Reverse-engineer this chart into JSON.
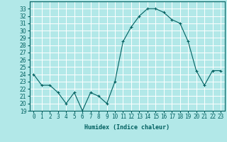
{
  "x": [
    0,
    1,
    2,
    3,
    4,
    5,
    6,
    7,
    8,
    9,
    10,
    11,
    12,
    13,
    14,
    15,
    16,
    17,
    18,
    19,
    20,
    21,
    22,
    23
  ],
  "y": [
    24.0,
    22.5,
    22.5,
    21.5,
    20.0,
    21.5,
    19.0,
    21.5,
    21.0,
    20.0,
    23.0,
    28.5,
    30.5,
    32.0,
    33.0,
    33.0,
    32.5,
    31.5,
    31.0,
    28.5,
    24.5,
    22.5,
    24.5,
    24.5
  ],
  "line_color": "#006060",
  "marker": "+",
  "marker_size": 3,
  "xlabel": "Humidex (Indice chaleur)",
  "bg_color": "#b2e8e8",
  "grid_color": "#ffffff",
  "ylim": [
    19,
    34
  ],
  "xlim": [
    -0.5,
    23.5
  ],
  "yticks": [
    19,
    20,
    21,
    22,
    23,
    24,
    25,
    26,
    27,
    28,
    29,
    30,
    31,
    32,
    33
  ],
  "xtick_labels": [
    "0",
    "1",
    "2",
    "3",
    "4",
    "5",
    "6",
    "7",
    "8",
    "9",
    "10",
    "11",
    "12",
    "13",
    "14",
    "15",
    "16",
    "17",
    "18",
    "19",
    "20",
    "21",
    "22",
    "23"
  ],
  "tick_color": "#006060",
  "label_fontsize": 6.0,
  "tick_fontsize": 5.5
}
